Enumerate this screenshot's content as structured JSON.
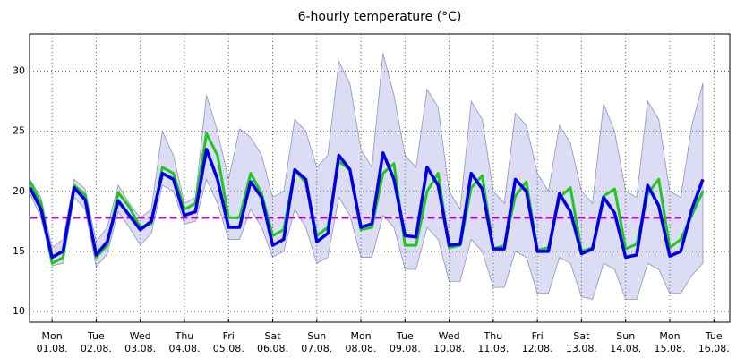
{
  "chart_data": {
    "type": "line",
    "title": "6-hourly temperature (°C)",
    "x": [
      -0.5,
      -0.25,
      0,
      0.25,
      0.5,
      0.75,
      1,
      1.25,
      1.5,
      1.75,
      2,
      2.25,
      2.5,
      2.75,
      3,
      3.25,
      3.5,
      3.75,
      4,
      4.25,
      4.5,
      4.75,
      5,
      5.25,
      5.5,
      5.75,
      6,
      6.25,
      6.5,
      6.75,
      7,
      7.25,
      7.5,
      7.75,
      8,
      8.25,
      8.5,
      8.75,
      9,
      9.25,
      9.5,
      9.75,
      10,
      10.25,
      10.5,
      10.75,
      11,
      11.25,
      11.5,
      11.75,
      12,
      12.25,
      12.5,
      12.75,
      13,
      13.25,
      13.5,
      13.75,
      14,
      14.25,
      14.5,
      14.75
    ],
    "band": {
      "color": "#dcdcf5",
      "edge": "#8c96b4",
      "high": [
        21,
        19.5,
        15.3,
        16,
        21,
        20.2,
        15.8,
        17,
        20.5,
        19,
        17.8,
        18.5,
        25,
        23,
        19,
        19.5,
        28,
        25,
        21,
        25.2,
        24.5,
        23,
        19.5,
        20,
        26,
        25,
        22,
        23,
        30.8,
        29,
        23.5,
        22,
        31.5,
        28,
        23,
        22,
        28.5,
        27,
        20,
        18.5,
        27.5,
        26,
        20,
        19,
        26.5,
        25.5,
        21.5,
        20,
        25.5,
        24,
        20,
        19,
        27.3,
        25,
        20,
        19.5,
        27.5,
        26,
        20,
        19.5,
        25.5,
        29
      ],
      "low": [
        19.8,
        17.8,
        13.8,
        14,
        19.5,
        18.5,
        13.7,
        14.8,
        18.3,
        17,
        15.5,
        16.5,
        20.5,
        20,
        17.3,
        17.5,
        21,
        19,
        16,
        16,
        18.5,
        17,
        14.5,
        15,
        18.5,
        17,
        14,
        14.5,
        19.5,
        18,
        14.5,
        14.5,
        18,
        17,
        13.5,
        13.5,
        17,
        16,
        12.5,
        12.5,
        16,
        15,
        12,
        12,
        15,
        14.5,
        11.5,
        11.5,
        14.5,
        14,
        11.2,
        11,
        14,
        13.5,
        11,
        11,
        14,
        13.5,
        11.5,
        11.5,
        13,
        14
      ]
    },
    "series": [
      {
        "color": "#0000e6",
        "width": 3.5,
        "values": [
          20.3,
          18.5,
          14.5,
          15,
          20.3,
          19.3,
          14.7,
          15.8,
          19.2,
          18,
          16.8,
          17.5,
          21.5,
          21,
          18,
          18.3,
          23.5,
          21,
          17,
          17,
          20.8,
          19.5,
          15.5,
          16,
          21.8,
          21,
          15.8,
          16.5,
          23,
          21.8,
          17,
          17.3,
          23.2,
          21,
          16.3,
          16.2,
          22,
          20.5,
          15.5,
          15.6,
          21.5,
          20.2,
          15.2,
          15.2,
          21,
          20,
          15,
          15,
          19.8,
          18.3,
          14.8,
          15.2,
          19.5,
          18.2,
          14.5,
          14.7,
          20.5,
          18.8,
          14.6,
          15,
          18.5,
          21
        ]
      },
      {
        "color": "#1ec81e",
        "width": 3,
        "values": [
          20.8,
          19,
          14,
          14.5,
          20.5,
          19.7,
          14.5,
          15.5,
          19.9,
          18.7,
          17,
          17.3,
          22,
          21.5,
          18.5,
          19,
          24.8,
          23,
          17.8,
          17.8,
          21.5,
          19.8,
          16.3,
          16.8,
          21.8,
          20.7,
          16.3,
          17,
          22.5,
          21.8,
          16.8,
          17,
          21.5,
          22.3,
          15.5,
          15.5,
          20,
          21.5,
          15.3,
          15.5,
          20.3,
          21.3,
          15.2,
          15.5,
          19.6,
          20.8,
          15.1,
          15.3,
          19.5,
          20.3,
          15,
          15.3,
          19.6,
          20.2,
          15.2,
          15.6,
          19.8,
          21,
          15.3,
          16,
          18,
          20
        ]
      },
      {
        "color": "#b414c8",
        "width": 2.5,
        "dashed": true,
        "x": [
          -0.5,
          14.25
        ],
        "values": [
          17.8,
          17.8
        ]
      }
    ],
    "xlim": [
      -0.51,
      15.36
    ],
    "ylim": [
      9.1,
      33.1
    ],
    "yticks": [
      10,
      15,
      20,
      25,
      30
    ],
    "xticks": [
      {
        "value": 0,
        "label": [
          "Mon",
          "01.08."
        ]
      },
      {
        "value": 1,
        "label": [
          "Tue",
          "02.08."
        ]
      },
      {
        "value": 2,
        "label": [
          "Wed",
          "03.08."
        ]
      },
      {
        "value": 3,
        "label": [
          "Thu",
          "04.08."
        ]
      },
      {
        "value": 4,
        "label": [
          "Fri",
          "05.08."
        ]
      },
      {
        "value": 5,
        "label": [
          "Sat",
          "06.08."
        ]
      },
      {
        "value": 6,
        "label": [
          "Sun",
          "07.08."
        ]
      },
      {
        "value": 7,
        "label": [
          "Mon",
          "08.08."
        ]
      },
      {
        "value": 8,
        "label": [
          "Tue",
          "09.08."
        ]
      },
      {
        "value": 9,
        "label": [
          "Wed",
          "10.08."
        ]
      },
      {
        "value": 10,
        "label": [
          "Thu",
          "11.08."
        ]
      },
      {
        "value": 11,
        "label": [
          "Fri",
          "12.08."
        ]
      },
      {
        "value": 12,
        "label": [
          "Sat",
          "13.08."
        ]
      },
      {
        "value": 13,
        "label": [
          "Sun",
          "14.08."
        ]
      },
      {
        "value": 14,
        "label": [
          "Mon",
          "15.08."
        ]
      },
      {
        "value": 15,
        "label": [
          "Tue",
          "16.08."
        ]
      }
    ],
    "grid": true
  }
}
